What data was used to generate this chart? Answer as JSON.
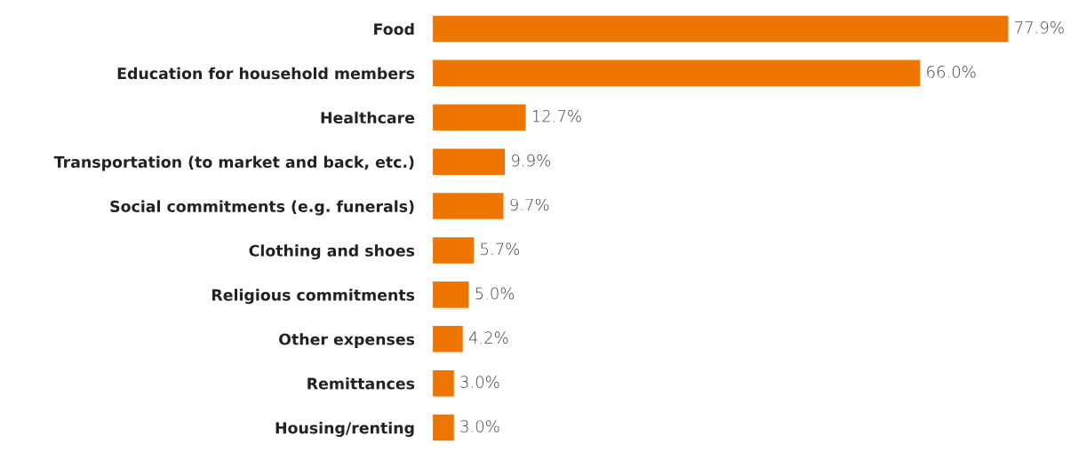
{
  "chart_data": {
    "type": "bar",
    "orientation": "horizontal",
    "categories": [
      "Food",
      "Education for household members",
      "Healthcare",
      "Transportation (to market and back, etc.)",
      "Social commitments (e.g. funerals)",
      "Clothing and shoes",
      "Religious commitments",
      "Other expenses",
      "Remittances",
      "Housing/renting"
    ],
    "values": [
      77.9,
      66.0,
      12.7,
      9.9,
      9.7,
      5.7,
      5.0,
      4.2,
      3.0,
      3.0
    ],
    "value_labels": [
      "77.9%",
      "66.0%",
      "12.7%",
      "9.9%",
      "9.7%",
      "5.7%",
      "5.0%",
      "4.2%",
      "3.0%",
      "3.0%"
    ],
    "color": "#ee7600",
    "grid": false,
    "legend": false
  }
}
